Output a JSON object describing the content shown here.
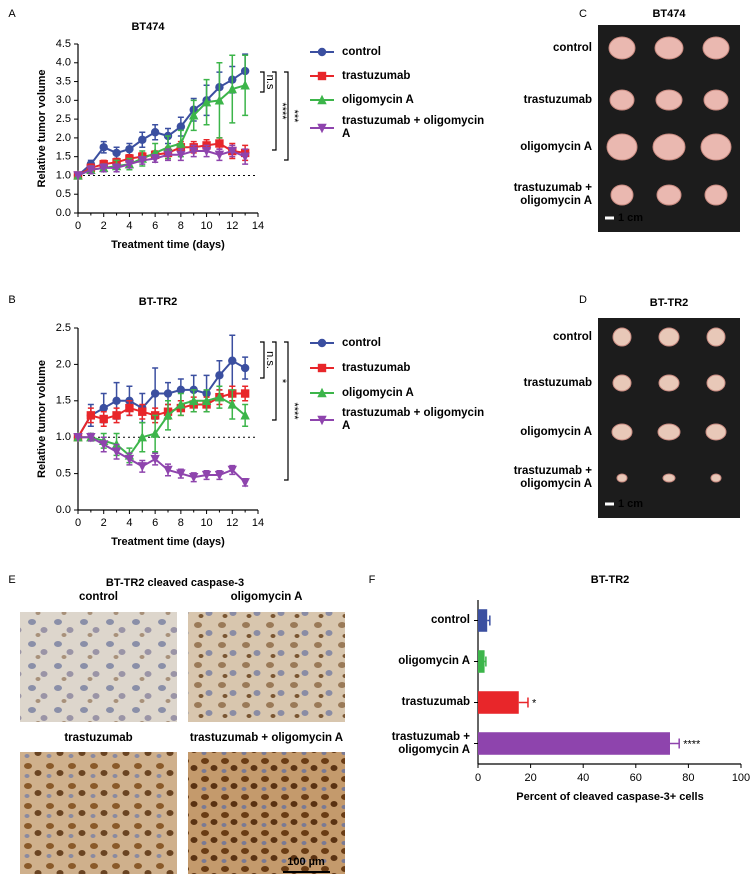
{
  "panel_labels": [
    "A",
    "B",
    "C",
    "D",
    "E",
    "F"
  ],
  "chart_data": [
    {
      "type": "line",
      "title": "BT474",
      "xlabel": "Treatment time (days)",
      "ylabel": "Relative tumor volume",
      "x": [
        0,
        1,
        2,
        3,
        4,
        5,
        6,
        7,
        8,
        9,
        10,
        11,
        12,
        13
      ],
      "xlim": [
        0,
        14
      ],
      "xticks": [
        0,
        2,
        4,
        6,
        8,
        10,
        12,
        14
      ],
      "ylim": [
        0,
        4.5
      ],
      "yticks": [
        {
          "value": 0,
          "label": "0.0"
        },
        {
          "value": 0.5,
          "label": "0.5"
        },
        {
          "value": 1,
          "label": "1.0"
        },
        {
          "value": 1.5,
          "label": "1.5"
        },
        {
          "value": 2,
          "label": "2.0"
        },
        {
          "value": 2.5,
          "label": "2.5"
        },
        {
          "value": 3,
          "label": "3.0"
        },
        {
          "value": 3.5,
          "label": "3.5"
        },
        {
          "value": 4,
          "label": "4.0"
        },
        {
          "value": 4.5,
          "label": "4.5"
        }
      ],
      "reference_line": 1,
      "series": [
        {
          "name": "control",
          "color": "#3b4fa0",
          "marker": "circle",
          "values": [
            1,
            1.3,
            1.75,
            1.6,
            1.7,
            1.95,
            2.15,
            2.05,
            2.3,
            2.75,
            3.0,
            3.35,
            3.55,
            3.78
          ],
          "errors": [
            0,
            0.1,
            0.15,
            0.15,
            0.15,
            0.2,
            0.2,
            0.2,
            0.25,
            0.3,
            0.4,
            0.4,
            0.35,
            0.45
          ]
        },
        {
          "name": "trastuzumab",
          "color": "#e8262a",
          "marker": "square",
          "values": [
            1,
            1.2,
            1.3,
            1.35,
            1.45,
            1.5,
            1.55,
            1.6,
            1.75,
            1.75,
            1.8,
            1.85,
            1.65,
            1.6
          ],
          "errors": [
            0,
            0.1,
            0.1,
            0.1,
            0.1,
            0.1,
            0.1,
            0.15,
            0.15,
            0.15,
            0.15,
            0.15,
            0.2,
            0.2
          ]
        },
        {
          "name": "oligomycin A",
          "color": "#3cb54a",
          "marker": "triangle-up",
          "values": [
            1,
            1.15,
            1.2,
            1.25,
            1.3,
            1.45,
            1.6,
            1.75,
            1.85,
            2.6,
            2.95,
            3.0,
            3.3,
            3.4
          ],
          "errors": [
            0,
            0.1,
            0.1,
            0.15,
            0.15,
            0.2,
            0.25,
            0.3,
            0.35,
            0.4,
            0.6,
            1.0,
            0.9,
            0.8
          ]
        },
        {
          "name": "trastuzumab + oligomycin A",
          "color": "#8e44ad",
          "marker": "triangle-down",
          "values": [
            1,
            1.15,
            1.2,
            1.2,
            1.3,
            1.4,
            1.45,
            1.55,
            1.55,
            1.65,
            1.65,
            1.55,
            1.65,
            1.5
          ],
          "errors": [
            0,
            0.1,
            0.1,
            0.1,
            0.1,
            0.1,
            0.1,
            0.15,
            0.15,
            0.15,
            0.15,
            0.15,
            0.15,
            0.2
          ]
        }
      ],
      "annotations": [
        "n.s",
        "****",
        "***"
      ]
    },
    {
      "type": "line",
      "title": "BT-TR2",
      "xlabel": "Treatment time (days)",
      "ylabel": "Relative tumor volume",
      "x": [
        0,
        1,
        2,
        3,
        4,
        5,
        6,
        7,
        8,
        9,
        10,
        11,
        12,
        13
      ],
      "xlim": [
        0,
        14
      ],
      "xticks": [
        0,
        2,
        4,
        6,
        8,
        10,
        12,
        14
      ],
      "ylim": [
        0,
        2.5
      ],
      "yticks": [
        {
          "value": 0,
          "label": "0.0"
        },
        {
          "value": 0.5,
          "label": "0.5"
        },
        {
          "value": 1,
          "label": "1.0"
        },
        {
          "value": 1.5,
          "label": "1.5"
        },
        {
          "value": 2,
          "label": "2.0"
        },
        {
          "value": 2.5,
          "label": "2.5"
        }
      ],
      "reference_line": 1,
      "series": [
        {
          "name": "control",
          "color": "#3b4fa0",
          "marker": "circle",
          "values": [
            1,
            1.3,
            1.4,
            1.5,
            1.5,
            1.4,
            1.6,
            1.6,
            1.65,
            1.65,
            1.6,
            1.85,
            2.05,
            1.95
          ],
          "errors": [
            0,
            0.15,
            0.2,
            0.25,
            0.2,
            0.2,
            0.35,
            0.15,
            0.15,
            0.2,
            0.25,
            0.2,
            0.35,
            0.15
          ]
        },
        {
          "name": "trastuzumab",
          "color": "#e8262a",
          "marker": "square",
          "values": [
            1,
            1.3,
            1.25,
            1.3,
            1.4,
            1.35,
            1.3,
            1.35,
            1.4,
            1.45,
            1.45,
            1.55,
            1.6,
            1.6
          ],
          "errors": [
            0,
            0.1,
            0.1,
            0.1,
            0.1,
            0.1,
            0.1,
            0.1,
            0.1,
            0.1,
            0.1,
            0.1,
            0.1,
            0.1
          ]
        },
        {
          "name": "oligomycin A",
          "color": "#3cb54a",
          "marker": "triangle-up",
          "values": [
            1,
            1.0,
            0.95,
            0.9,
            0.75,
            1.0,
            1.05,
            1.3,
            1.45,
            1.5,
            1.5,
            1.55,
            1.45,
            1.3
          ],
          "errors": [
            0,
            0.05,
            0.1,
            0.15,
            0.1,
            0.2,
            0.25,
            0.2,
            0.15,
            0.15,
            0.15,
            0.15,
            0.2,
            0.15
          ]
        },
        {
          "name": "trastuzumab + oligomycin A",
          "color": "#8e44ad",
          "marker": "triangle-down",
          "values": [
            1,
            1.0,
            0.9,
            0.8,
            0.7,
            0.6,
            0.7,
            0.55,
            0.5,
            0.45,
            0.48,
            0.48,
            0.55,
            0.38
          ],
          "errors": [
            0,
            0.05,
            0.1,
            0.1,
            0.08,
            0.08,
            0.08,
            0.08,
            0.06,
            0.06,
            0.06,
            0.06,
            0.06,
            0.05
          ]
        }
      ],
      "annotations": [
        "n.s.",
        "*",
        "****"
      ]
    },
    {
      "type": "hbar",
      "title": "BT-TR2",
      "xlabel": "Percent of cleaved caspase-3+ cells",
      "categories": [
        "control",
        "oligomycin A",
        "trastuzumab",
        "trastuzumab + oligomycin A"
      ],
      "values": [
        3.5,
        2.5,
        15.5,
        73
      ],
      "errors": [
        1,
        0.5,
        3.5,
        3.5
      ],
      "colors": [
        "#3b4fa0",
        "#3cb54a",
        "#e8262a",
        "#8e44ad"
      ],
      "significance": [
        null,
        null,
        "*",
        "****"
      ],
      "xlim": [
        0,
        100
      ],
      "xticks": [
        0,
        20,
        40,
        60,
        80,
        100
      ]
    }
  ],
  "photos": [
    {
      "title": "BT474",
      "rows": [
        "control",
        "trastuzumab",
        "oligomycin A",
        "trastuzumab + oligomycin A"
      ],
      "scale": "1 cm"
    },
    {
      "title": "BT-TR2",
      "rows": [
        "control",
        "trastuzumab",
        "oligomycin A",
        "trastuzumab + oligomycin A"
      ],
      "scale": "1 cm"
    }
  ],
  "ihc": {
    "title": "BT-TR2 cleaved caspase-3",
    "labels": [
      "control",
      "oligomycin A",
      "trastuzumab",
      "trastuzumab + oligomycin A"
    ],
    "scale": "100 µm"
  }
}
